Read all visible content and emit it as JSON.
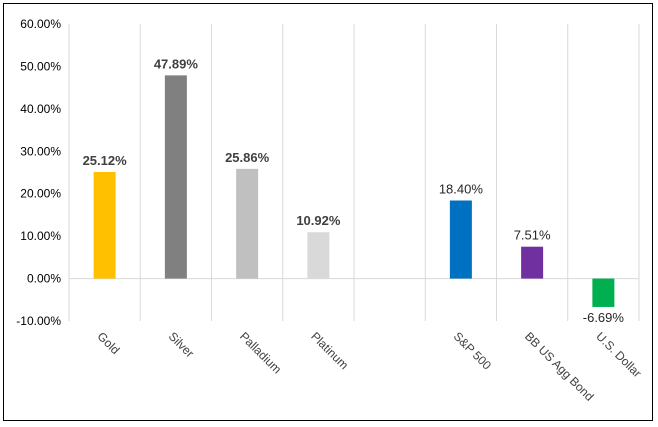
{
  "chart_data": {
    "type": "bar",
    "categories": [
      "Gold",
      "Silver",
      "Palladium",
      "Platinum",
      "",
      "S&P 500",
      "BB US Agg Bond",
      "U.S. Dollar"
    ],
    "values": [
      25.12,
      47.89,
      25.86,
      10.92,
      null,
      18.4,
      7.51,
      -6.69
    ],
    "value_labels": [
      "25.12%",
      "47.89%",
      "25.86%",
      "10.92%",
      "",
      "18.40%",
      "7.51%",
      "-6.69%"
    ],
    "bold_labels": [
      true,
      true,
      true,
      true,
      false,
      false,
      false,
      false
    ],
    "colors": [
      "#FFC000",
      "#808080",
      "#C0C0C0",
      "#D9D9D9",
      "",
      "#0070C0",
      "#7030A0",
      "#00B050"
    ],
    "ylim": [
      -10,
      60
    ],
    "yticks": [
      -10,
      0,
      10,
      20,
      30,
      40,
      50,
      60
    ],
    "ytick_labels": [
      "-10.00%",
      "0.00%",
      "10.00%",
      "20.00%",
      "30.00%",
      "40.00%",
      "50.00%",
      "60.00%"
    ],
    "xlabel": "",
    "ylabel": "",
    "title": "",
    "grid": "vertical"
  }
}
